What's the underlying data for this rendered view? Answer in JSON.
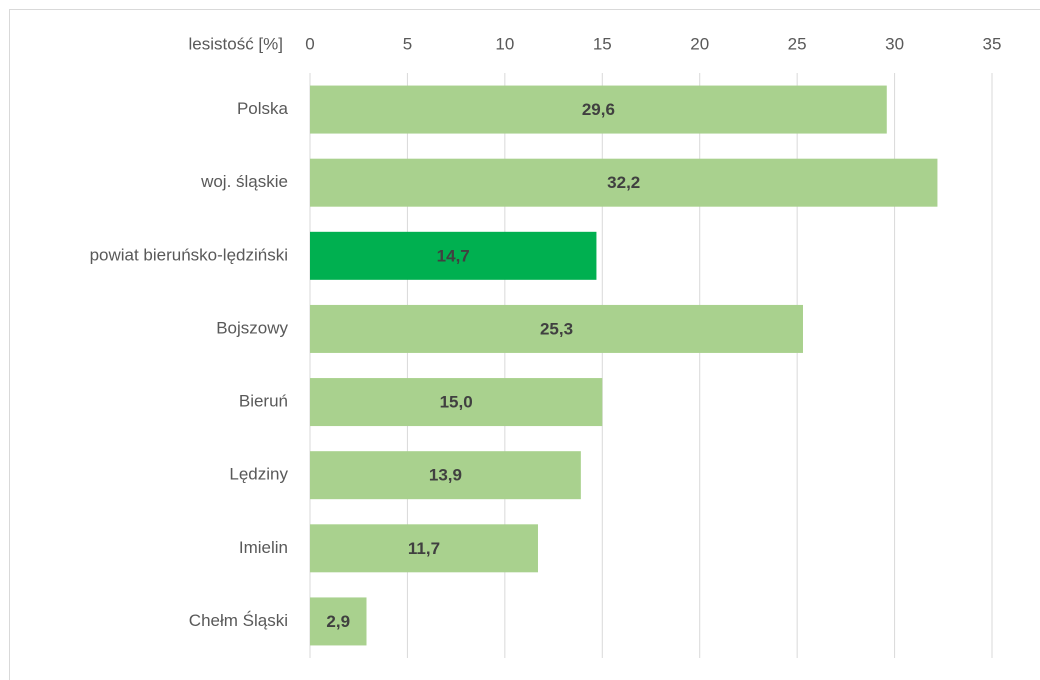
{
  "chart_data": {
    "type": "bar",
    "orientation": "horizontal",
    "x_label": "lesistość [%]",
    "categories": [
      "Polska",
      "woj. śląskie",
      "powiat bieruńsko-lędziński",
      "Bojszowy",
      "Bieruń",
      "Lędziny",
      "Imielin",
      "Chełm Śląski"
    ],
    "values": [
      29.6,
      32.2,
      14.7,
      25.3,
      15.0,
      13.9,
      11.7,
      2.9
    ],
    "value_labels": [
      "29,6",
      "32,2",
      "14,7",
      "25,3",
      "15,0",
      "13,9",
      "11,7",
      "2,9"
    ],
    "colors": [
      "#a9d18e",
      "#a9d18e",
      "#00b050",
      "#a9d18e",
      "#a9d18e",
      "#a9d18e",
      "#a9d18e",
      "#a9d18e"
    ],
    "xlim": [
      0,
      35
    ],
    "xticks": [
      0,
      5,
      10,
      15,
      20,
      25,
      30,
      35
    ],
    "grid": true
  }
}
